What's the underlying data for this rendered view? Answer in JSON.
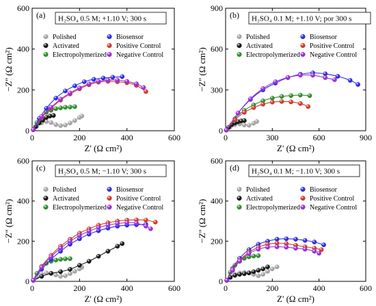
{
  "symbols": {
    "Polished": "gray-sphere",
    "Activated": "black-sphere",
    "Electropolymerized": "green-sphere",
    "Biosensor": "blue-sphere",
    "Positive Control": "red-sphere",
    "Negative Control": "purple-sphere"
  },
  "chart_data": [
    {
      "type": "scatter",
      "panel_label": "(a)",
      "title": "H₂SO₄ 0.5 M; +1.10 V; 300 s",
      "xlabel": "Z' (Ω cm²)",
      "ylabel": "−Z'' (Ω cm²)",
      "xlim": [
        0,
        600
      ],
      "ylim": [
        0,
        600
      ],
      "xticks": [
        0,
        200,
        400,
        600
      ],
      "yticks": [
        0,
        200,
        400,
        600
      ],
      "legend_position": "upper-left-center",
      "series": [
        {
          "name": "Polished",
          "color": "#a5a5a5",
          "x": [
            5,
            20,
            40,
            60,
            80,
            100,
            120,
            140,
            160,
            180,
            200,
            210
          ],
          "y": [
            5,
            22,
            38,
            45,
            40,
            30,
            25,
            28,
            38,
            50,
            65,
            72
          ]
        },
        {
          "name": "Activated",
          "color": "#1a1a1a",
          "x": [
            5,
            15,
            30,
            45,
            60,
            75,
            90
          ],
          "y": [
            5,
            20,
            38,
            52,
            65,
            72,
            75
          ]
        },
        {
          "name": "Electropolymerized",
          "color": "#2f8f2f",
          "x": [
            5,
            20,
            40,
            60,
            80,
            100,
            120,
            140,
            160,
            180
          ],
          "y": [
            5,
            40,
            70,
            90,
            100,
            108,
            112,
            115,
            116,
            118
          ]
        },
        {
          "name": "Biosensor",
          "color": "#2d2de0",
          "x": [
            5,
            30,
            60,
            100,
            140,
            180,
            220,
            260,
            300,
            340,
            380
          ],
          "y": [
            5,
            60,
            110,
            160,
            195,
            220,
            240,
            252,
            258,
            262,
            265
          ]
        },
        {
          "name": "Positive Control",
          "color": "#d23a2a",
          "x": [
            5,
            40,
            80,
            120,
            160,
            200,
            240,
            280,
            320,
            360,
            400,
            440,
            480
          ],
          "y": [
            5,
            65,
            110,
            150,
            180,
            205,
            225,
            238,
            242,
            240,
            235,
            222,
            192
          ]
        },
        {
          "name": "Negative Control",
          "color": "#9b30d9",
          "x": [
            5,
            40,
            80,
            120,
            160,
            200,
            240,
            280,
            320,
            360,
            400,
            440,
            470
          ],
          "y": [
            5,
            70,
            115,
            155,
            185,
            210,
            230,
            242,
            248,
            248,
            242,
            230,
            212
          ]
        }
      ]
    },
    {
      "type": "scatter",
      "panel_label": "(b)",
      "title": "H₂SO₄ 0.1 M; +1.10 V; por 300 s",
      "xlabel": "Z' (Ω cm²)",
      "ylabel": "−Z'' (Ω cm²)",
      "xlim": [
        0,
        900
      ],
      "ylim": [
        0,
        900
      ],
      "xticks": [
        0,
        300,
        600,
        900
      ],
      "yticks": [
        0,
        300,
        600,
        900
      ],
      "legend_position": "upper-left-center",
      "series": [
        {
          "name": "Polished",
          "color": "#a5a5a5",
          "x": [
            5,
            30,
            60,
            90,
            120,
            150,
            180,
            200
          ],
          "y": [
            5,
            28,
            45,
            50,
            42,
            40,
            55,
            68
          ]
        },
        {
          "name": "Activated",
          "color": "#1a1a1a",
          "x": [
            5,
            20,
            40,
            60,
            80,
            100,
            120
          ],
          "y": [
            5,
            25,
            45,
            58,
            66,
            72,
            75
          ]
        },
        {
          "name": "Electropolymerized",
          "color": "#2f8f2f",
          "x": [
            5,
            60,
            120,
            180,
            240,
            300,
            360,
            420,
            480,
            540
          ],
          "y": [
            5,
            90,
            150,
            190,
            220,
            240,
            252,
            258,
            262,
            258
          ]
        },
        {
          "name": "Biosensor",
          "color": "#2d2de0",
          "x": [
            5,
            80,
            160,
            240,
            320,
            400,
            480,
            560,
            640,
            720,
            800,
            850
          ],
          "y": [
            5,
            130,
            230,
            300,
            350,
            390,
            415,
            425,
            418,
            400,
            370,
            340
          ]
        },
        {
          "name": "Positive Control",
          "color": "#d23a2a",
          "x": [
            5,
            60,
            120,
            180,
            240,
            300,
            360,
            420,
            480,
            530
          ],
          "y": [
            5,
            80,
            135,
            170,
            195,
            210,
            215,
            212,
            200,
            178
          ]
        },
        {
          "name": "Negative Control",
          "color": "#9b30d9",
          "x": [
            5,
            80,
            160,
            240,
            320,
            400,
            480,
            560,
            640,
            700
          ],
          "y": [
            5,
            130,
            235,
            310,
            360,
            392,
            408,
            408,
            390,
            375
          ]
        }
      ]
    },
    {
      "type": "scatter",
      "panel_label": "(c)",
      "title": "H₂SO₄ 0.5 M; −1.10 V; 300 s",
      "xlabel": "Z' (Ω cm²)",
      "ylabel": "−Z'' (Ω cm²)",
      "xlim": [
        0,
        600
      ],
      "ylim": [
        0,
        600
      ],
      "xticks": [
        0,
        200,
        400,
        600
      ],
      "yticks": [
        0,
        200,
        400,
        600
      ],
      "legend_position": "upper-left-center",
      "series": [
        {
          "name": "Polished",
          "color": "#a5a5a5",
          "x": [
            5,
            20,
            40,
            60,
            80,
            100,
            120,
            140,
            160,
            180,
            200,
            210
          ],
          "y": [
            5,
            20,
            35,
            42,
            40,
            32,
            25,
            28,
            38,
            50,
            62,
            70
          ]
        },
        {
          "name": "Activated",
          "color": "#1a1a1a",
          "x": [
            5,
            40,
            80,
            120,
            160,
            200,
            240,
            280,
            320,
            360,
            380
          ],
          "y": [
            5,
            25,
            40,
            48,
            60,
            80,
            100,
            125,
            150,
            175,
            188
          ]
        },
        {
          "name": "Electropolymerized",
          "color": "#2f8f2f",
          "x": [
            5,
            20,
            40,
            60,
            80,
            100,
            120,
            140,
            160
          ],
          "y": [
            5,
            40,
            70,
            90,
            100,
            106,
            110,
            112,
            113
          ]
        },
        {
          "name": "Biosensor",
          "color": "#2d2de0",
          "x": [
            5,
            40,
            80,
            120,
            160,
            200,
            240,
            280,
            320,
            360,
            400,
            440,
            480
          ],
          "y": [
            5,
            60,
            110,
            150,
            185,
            212,
            235,
            252,
            265,
            275,
            280,
            282,
            284
          ]
        },
        {
          "name": "Positive Control",
          "color": "#d23a2a",
          "x": [
            5,
            40,
            80,
            120,
            160,
            200,
            240,
            280,
            320,
            360,
            400,
            440,
            480,
            520
          ],
          "y": [
            5,
            75,
            130,
            175,
            210,
            240,
            262,
            280,
            292,
            300,
            305,
            306,
            305,
            295
          ]
        },
        {
          "name": "Negative Control",
          "color": "#9b30d9",
          "x": [
            5,
            40,
            80,
            120,
            160,
            200,
            240,
            280,
            320,
            360,
            400,
            440,
            480,
            500
          ],
          "y": [
            5,
            70,
            122,
            165,
            200,
            228,
            250,
            268,
            280,
            288,
            292,
            290,
            275,
            262
          ]
        }
      ]
    },
    {
      "type": "scatter",
      "panel_label": "(d)",
      "title": "H₂SO₄ 0.1 M; −1.10 V; 300 s",
      "xlabel": "Z' (Ω cm²)",
      "ylabel": "−Z'' (Ω cm²)",
      "xlim": [
        0,
        600
      ],
      "ylim": [
        0,
        600
      ],
      "xticks": [
        0,
        200,
        400,
        600
      ],
      "yticks": [
        0,
        200,
        400,
        600
      ],
      "legend_position": "upper-left-center",
      "series": [
        {
          "name": "Polished",
          "color": "#a5a5a5",
          "x": [
            5,
            20,
            40,
            60,
            80,
            100,
            120,
            140,
            160,
            180,
            200,
            220
          ],
          "y": [
            5,
            20,
            35,
            42,
            45,
            42,
            35,
            28,
            35,
            50,
            62,
            72
          ]
        },
        {
          "name": "Activated",
          "color": "#1a1a1a",
          "x": [
            5,
            20,
            40,
            60,
            80,
            100,
            120,
            140,
            160,
            180
          ],
          "y": [
            5,
            20,
            30,
            35,
            38,
            42,
            48,
            55,
            62,
            72
          ]
        },
        {
          "name": "Electropolymerized",
          "color": "#2f8f2f",
          "x": [
            5,
            20,
            40,
            60,
            80,
            100,
            120,
            140
          ],
          "y": [
            5,
            45,
            80,
            100,
            115,
            122,
            126,
            128
          ]
        },
        {
          "name": "Biosensor",
          "color": "#2d2de0",
          "x": [
            5,
            30,
            60,
            100,
            140,
            180,
            220,
            260,
            300,
            340,
            380,
            420
          ],
          "y": [
            5,
            65,
            115,
            158,
            185,
            200,
            210,
            212,
            210,
            204,
            196,
            182
          ]
        },
        {
          "name": "Positive Control",
          "color": "#d23a2a",
          "x": [
            5,
            30,
            60,
            100,
            140,
            180,
            220,
            260,
            300,
            340,
            380,
            410
          ],
          "y": [
            5,
            60,
            105,
            145,
            170,
            185,
            190,
            188,
            180,
            172,
            165,
            158
          ]
        },
        {
          "name": "Negative Control",
          "color": "#9b30d9",
          "x": [
            5,
            30,
            60,
            100,
            140,
            180,
            220,
            260,
            300,
            340,
            380,
            400
          ],
          "y": [
            5,
            55,
            100,
            138,
            160,
            170,
            172,
            170,
            165,
            160,
            150,
            140
          ]
        }
      ]
    }
  ]
}
